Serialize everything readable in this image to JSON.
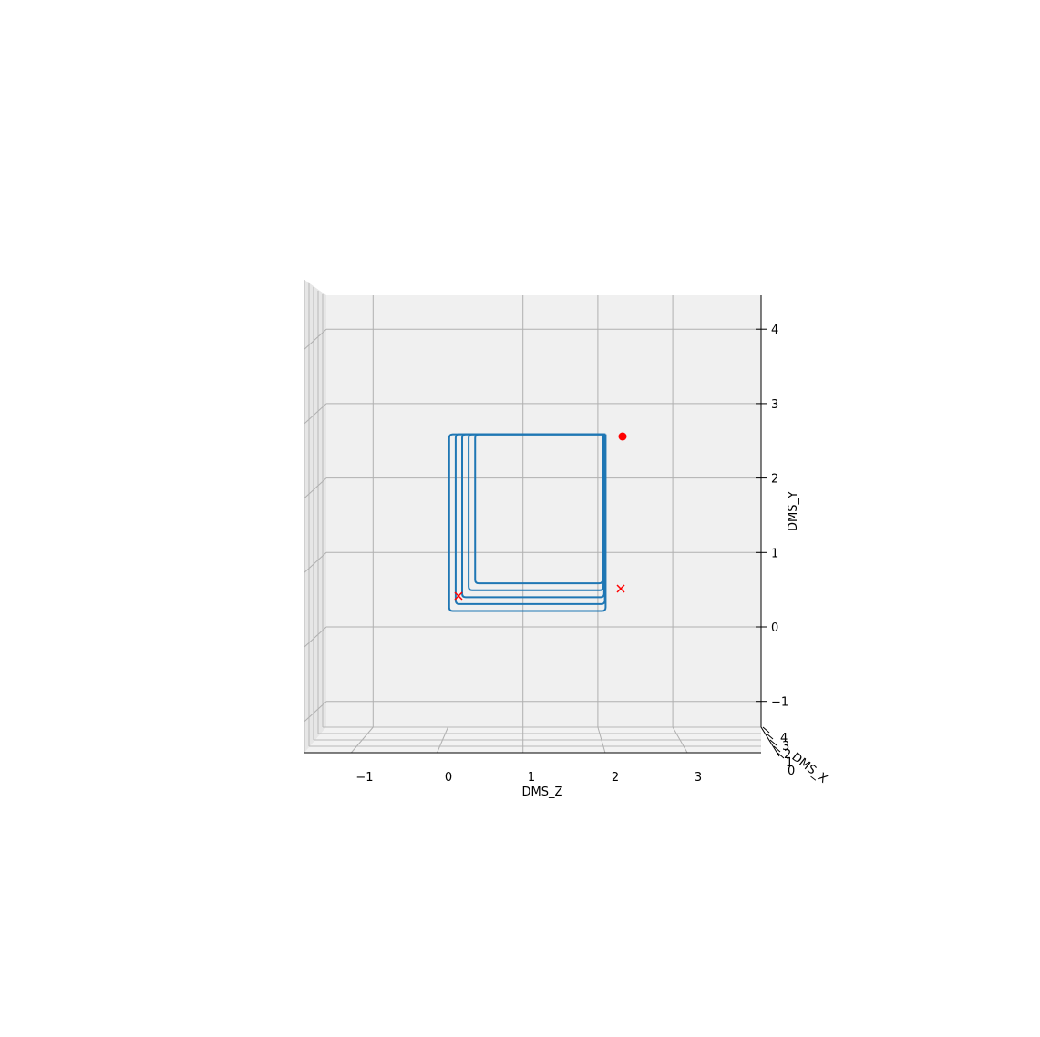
{
  "chart_data": {
    "type": "line",
    "projection": "3d",
    "view": "front (looking along DMS_X, DMS_Z horizontal, DMS_Y vertical)",
    "xlabel": "DMS_Z",
    "ylabel": "DMS_Y",
    "zlabel": "DMS_X",
    "x_ticks": [
      "−1",
      "0",
      "1",
      "2",
      "3"
    ],
    "x_tick_values": [
      -1,
      0,
      1,
      2,
      3
    ],
    "y_ticks": [
      "−1",
      "0",
      "1",
      "2",
      "3",
      "4"
    ],
    "y_tick_values": [
      -1,
      0,
      1,
      2,
      3,
      4
    ],
    "z_ticks": [
      "0",
      "1",
      "2",
      "3",
      "4"
    ],
    "xlim": [
      -1.8,
      3.8
    ],
    "ylim": [
      -1.3,
      4.5
    ],
    "grid": true,
    "series_color": "#1f77b4",
    "marker_color": "#ff0000",
    "pane_color": "#f0f0f0",
    "grid_color": "#b0b0b0",
    "series": [
      {
        "loops": [
          {
            "z": 0.24,
            "y_bottom": 0.5
          },
          {
            "z": 0.19,
            "y_bottom": 0.45
          },
          {
            "z": 0.14,
            "y_bottom": 0.4
          },
          {
            "z": 0.09,
            "y_bottom": 0.35
          },
          {
            "z": 0.04,
            "y_bottom": 0.3
          }
        ],
        "right_x": 2.15,
        "top_y": 2.6,
        "left_x_top": 0.13
      }
    ],
    "markers": [
      {
        "type": "circle",
        "x": 2.1,
        "y": 2.58
      },
      {
        "type": "x",
        "x": 2.05,
        "y": 0.47
      },
      {
        "type": "x",
        "x": 0.12,
        "y": 0.38
      }
    ]
  }
}
